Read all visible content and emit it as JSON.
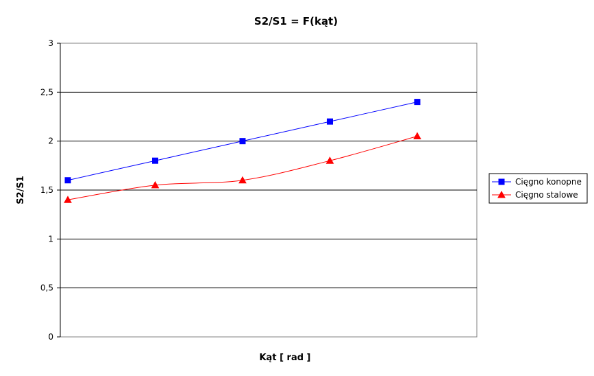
{
  "chart_data": {
    "type": "line",
    "title": "S2/S1 = F(kąt)",
    "xlabel": "Kąt [ rad ]",
    "ylabel": "S2/S1",
    "ylim": [
      0,
      3
    ],
    "yticks": [
      "0",
      "0,5",
      "1",
      "1,5",
      "2",
      "2,5",
      "3"
    ],
    "ytick_values": [
      0,
      0.5,
      1,
      1.5,
      2,
      2.5,
      3
    ],
    "x": [
      1,
      2,
      3,
      4,
      5
    ],
    "grid": true,
    "legend_position": "right",
    "series": [
      {
        "name": "Cięgno konopne",
        "marker": "square",
        "color": "#0000ff",
        "values": [
          1.6,
          1.8,
          2.0,
          2.2,
          2.4
        ]
      },
      {
        "name": "Cięgno stalowe",
        "marker": "triangle",
        "color": "#ff0000",
        "values": [
          1.4,
          1.55,
          1.6,
          1.8,
          2.05
        ]
      }
    ]
  }
}
